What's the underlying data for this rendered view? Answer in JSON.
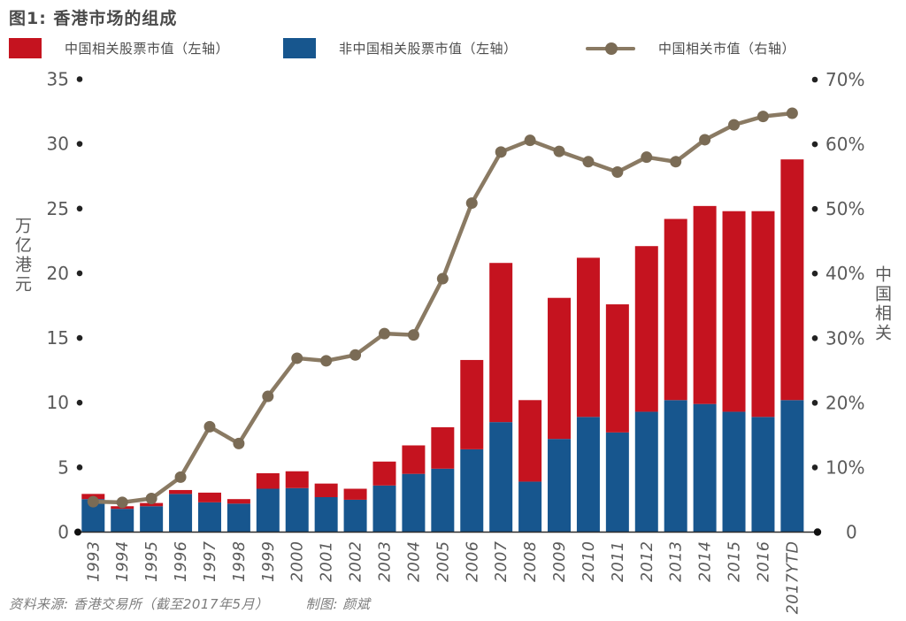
{
  "title": "图1: 香港市场的组成",
  "legend": [
    {
      "label": "中国相关股票市值（左轴）",
      "type": "swatch",
      "color": "#c5131f"
    },
    {
      "label": "非中国相关股票市值（左轴）",
      "type": "swatch",
      "color": "#17568e"
    },
    {
      "label": "中国相关市值（右轴）",
      "type": "line",
      "color": "#8a7a63",
      "dot_color": "#7a6b55"
    }
  ],
  "footer": {
    "source": "资料来源: 香港交易所（截至2017年5月）",
    "credit": "制图: 颜斌"
  },
  "chart_data": {
    "type": "bar",
    "subtype": "stacked-bars-with-line-on-secondary-axis",
    "title": "图1: 香港市场的组成",
    "categories": [
      "1993",
      "1994",
      "1995",
      "1996",
      "1997",
      "1998",
      "1999",
      "2000",
      "2001",
      "2002",
      "2003",
      "2004",
      "2005",
      "2006",
      "2007",
      "2008",
      "2009",
      "2010",
      "2011",
      "2012",
      "2013",
      "2014",
      "2015",
      "2016",
      "2017YTD"
    ],
    "series": [
      {
        "name": "非中国相关股票市值（左轴）",
        "type": "bar",
        "stack": "mcap",
        "axis": "left",
        "color": "#17568e",
        "values": [
          2.55,
          1.8,
          2.0,
          2.95,
          2.3,
          2.2,
          3.35,
          3.4,
          2.7,
          2.5,
          3.6,
          4.5,
          4.9,
          6.4,
          8.5,
          3.9,
          7.2,
          8.9,
          7.7,
          9.3,
          10.2,
          9.9,
          9.3,
          8.9,
          10.2
        ]
      },
      {
        "name": "中国相关股票市值（左轴）",
        "type": "bar",
        "stack": "mcap",
        "axis": "left",
        "color": "#c5131f",
        "values": [
          0.4,
          0.2,
          0.25,
          0.3,
          0.75,
          0.35,
          1.2,
          1.3,
          1.05,
          0.85,
          1.85,
          2.2,
          3.2,
          6.9,
          12.3,
          6.3,
          10.9,
          12.3,
          9.9,
          12.8,
          14.0,
          15.3,
          15.5,
          15.9,
          18.6
        ]
      },
      {
        "name": "中国相关市值（右轴）",
        "type": "line",
        "axis": "right",
        "color": "#8a7a63",
        "dot_color": "#7a6b55",
        "values": [
          4.7,
          4.6,
          5.2,
          8.5,
          16.3,
          13.7,
          21.0,
          26.9,
          26.5,
          27.4,
          30.7,
          30.5,
          39.2,
          50.9,
          58.8,
          60.6,
          58.9,
          57.3,
          55.7,
          58.0,
          57.3,
          60.7,
          63.0,
          64.3,
          64.8
        ]
      }
    ],
    "left_axis": {
      "label": "万亿港元",
      "ticks": [
        0,
        5,
        10,
        15,
        20,
        25,
        30,
        35
      ],
      "min": 0,
      "max": 35
    },
    "right_axis": {
      "label": "中国相关",
      "ticks": [
        "0",
        "10%",
        "20%",
        "30%",
        "40%",
        "50%",
        "60%",
        "70%"
      ],
      "min": 0,
      "max": 70
    },
    "grid": false,
    "legend_position": "top",
    "tick_marker": "dot"
  }
}
